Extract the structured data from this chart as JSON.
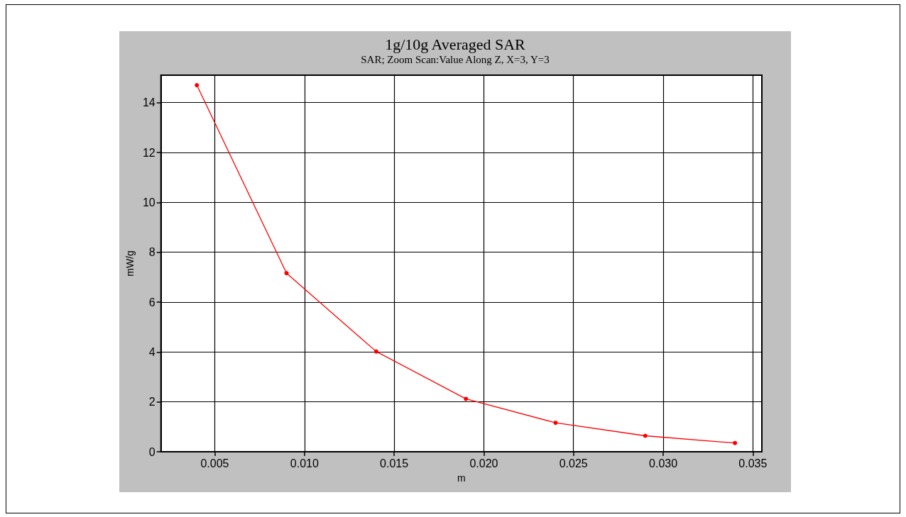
{
  "chart_data": {
    "type": "line",
    "title": "1g/10g Averaged SAR",
    "subtitle": "SAR; Zoom Scan:Value Along Z, X=3, Y=3",
    "xlabel": "m",
    "ylabel": "mW/g",
    "x": [
      0.004,
      0.009,
      0.014,
      0.019,
      0.024,
      0.029,
      0.034
    ],
    "series": [
      {
        "color": "#ff0000",
        "values": [
          14.7,
          7.16,
          4.02,
          2.12,
          1.16,
          0.64,
          0.35
        ]
      }
    ],
    "xlim": [
      0.002,
      0.0355
    ],
    "xticks": [
      {
        "value": 0.005,
        "label": "0.005"
      },
      {
        "value": 0.01,
        "label": "0.010"
      },
      {
        "value": 0.015,
        "label": "0.015"
      },
      {
        "value": 0.02,
        "label": "0.020"
      },
      {
        "value": 0.025,
        "label": "0.025"
      },
      {
        "value": 0.03,
        "label": "0.030"
      },
      {
        "value": 0.035,
        "label": "0.035"
      }
    ],
    "ylim": [
      0,
      15.1
    ],
    "yticks": [
      0,
      2,
      4,
      6,
      8,
      10,
      12,
      14
    ],
    "grid": true,
    "marker": "circle",
    "line_style": "solid"
  }
}
